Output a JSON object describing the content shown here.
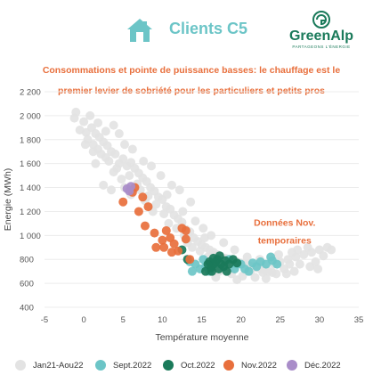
{
  "header": {
    "title": "Clients C5",
    "logo_text": "GreenAlp",
    "logo_tagline": "PARTAGEONS L'ÉNERGIE",
    "home_icon": "house-icon"
  },
  "colors": {
    "title": "#6cc5c7",
    "subtitle": "#e86f3c",
    "logo": "#1a7a5a",
    "jan21_aou22": "#e3e3e3",
    "sept2022": "#6cc5c7",
    "oct2022": "#1a7a5a",
    "nov2022": "#e86f3c",
    "dec2022": "#a98dc9"
  },
  "chart_data": {
    "type": "scatter",
    "title": "Consommations et pointe de puissance basses: le chauffage est le premier levier de sobriété pour les particuliers et petits pros",
    "xlabel": "Température moyenne",
    "ylabel": "Energie (MWh)",
    "xlim": [
      -5,
      35
    ],
    "ylim": [
      400,
      2200
    ],
    "x_ticks": [
      "-5",
      "0",
      "5",
      "10",
      "15",
      "20",
      "25",
      "30",
      "35"
    ],
    "y_ticks": [
      "400",
      "600",
      "800",
      "1 000",
      "1 200",
      "1 400",
      "1 600",
      "1 800",
      "2 000",
      "2 200"
    ],
    "grid": true,
    "annotation": {
      "lines": [
        "Données Nov.",
        "temporaires"
      ],
      "x": 25,
      "y": 1080
    },
    "legend_position": "bottom",
    "series": [
      {
        "name": "Jan21-Aou22",
        "color": "#e3e3e3",
        "points": [
          [
            -1,
            2030
          ],
          [
            0,
            1950
          ],
          [
            -0.5,
            1880
          ],
          [
            0.3,
            1860
          ],
          [
            1,
            1900
          ],
          [
            1.5,
            1850
          ],
          [
            0.5,
            1800
          ],
          [
            1.2,
            1760
          ],
          [
            2,
            1820
          ],
          [
            2.5,
            1780
          ],
          [
            3,
            1750
          ],
          [
            1.8,
            1720
          ],
          [
            2.2,
            1680
          ],
          [
            3.5,
            1700
          ],
          [
            4,
            1680
          ],
          [
            2.8,
            1650
          ],
          [
            1.5,
            1600
          ],
          [
            3.2,
            1620
          ],
          [
            4.5,
            1600
          ],
          [
            5,
            1640
          ],
          [
            5.5,
            1580
          ],
          [
            6,
            1610
          ],
          [
            4.2,
            1560
          ],
          [
            3.8,
            1530
          ],
          [
            6.5,
            1560
          ],
          [
            7,
            1520
          ],
          [
            5.8,
            1500
          ],
          [
            4.8,
            1470
          ],
          [
            7.5,
            1480
          ],
          [
            8,
            1450
          ],
          [
            6.8,
            1430
          ],
          [
            2.5,
            1420
          ],
          [
            3.5,
            1380
          ],
          [
            5.2,
            1400
          ],
          [
            7.2,
            1380
          ],
          [
            8.5,
            1400
          ],
          [
            9,
            1370
          ],
          [
            8.2,
            1330
          ],
          [
            9.5,
            1320
          ],
          [
            10,
            1300
          ],
          [
            6,
            1340
          ],
          [
            7.8,
            1290
          ],
          [
            9.2,
            1260
          ],
          [
            10.5,
            1240
          ],
          [
            11,
            1220
          ],
          [
            8.8,
            1200
          ],
          [
            10.2,
            1180
          ],
          [
            11.5,
            1170
          ],
          [
            12,
            1140
          ],
          [
            12.5,
            1110
          ],
          [
            10.8,
            1100
          ],
          [
            11.8,
            1060
          ],
          [
            13,
            1050
          ],
          [
            13.5,
            1030
          ],
          [
            12.8,
            1000
          ],
          [
            14,
            980
          ],
          [
            14.5,
            950
          ],
          [
            13.2,
            940
          ],
          [
            15,
            920
          ],
          [
            15.5,
            900
          ],
          [
            14.8,
            870
          ],
          [
            16,
            880
          ],
          [
            16.5,
            860
          ],
          [
            17,
            840
          ],
          [
            15.8,
            820
          ],
          [
            17.5,
            820
          ],
          [
            18,
            810
          ],
          [
            18.5,
            800
          ],
          [
            19,
            790
          ],
          [
            19.5,
            780
          ],
          [
            20,
            770
          ],
          [
            20.5,
            760
          ],
          [
            21,
            750
          ],
          [
            21.5,
            740
          ],
          [
            22,
            730
          ],
          [
            22.5,
            720
          ],
          [
            23,
            710
          ],
          [
            23.5,
            700
          ],
          [
            24,
            690
          ],
          [
            24.5,
            680
          ],
          [
            17.2,
            700
          ],
          [
            18.8,
            680
          ],
          [
            20.2,
            660
          ],
          [
            21.8,
            650
          ],
          [
            23.2,
            640
          ],
          [
            19.5,
            630
          ],
          [
            16.8,
            650
          ],
          [
            25,
            780
          ],
          [
            26,
            800
          ],
          [
            27,
            820
          ],
          [
            28,
            840
          ],
          [
            29,
            860
          ],
          [
            30,
            880
          ],
          [
            31,
            900
          ],
          [
            26.5,
            860
          ],
          [
            28.5,
            900
          ],
          [
            27.5,
            760
          ],
          [
            29.5,
            780
          ],
          [
            25.5,
            720
          ],
          [
            26.8,
            700
          ],
          [
            30.5,
            830
          ],
          [
            24.2,
            760
          ],
          [
            22.8,
            690
          ],
          [
            21.2,
            700
          ],
          [
            18.2,
            740
          ],
          [
            -1.2,
            1980
          ],
          [
            0.8,
            2000
          ],
          [
            1.8,
            1940
          ],
          [
            2.8,
            1870
          ],
          [
            4.5,
            1850
          ],
          [
            5.2,
            1760
          ],
          [
            6.2,
            1720
          ],
          [
            3.8,
            1920
          ],
          [
            1.2,
            1700
          ],
          [
            0.2,
            1760
          ],
          [
            8.6,
            1580
          ],
          [
            9.8,
            1500
          ],
          [
            7.6,
            1620
          ],
          [
            11.2,
            1420
          ],
          [
            12.2,
            1380
          ],
          [
            13.6,
            1280
          ],
          [
            10.6,
            1340
          ],
          [
            12.6,
            1200
          ],
          [
            14.2,
            1120
          ],
          [
            15.2,
            1060
          ],
          [
            16.2,
            1000
          ],
          [
            13.8,
            900
          ],
          [
            15.4,
            980
          ],
          [
            17.8,
            940
          ],
          [
            19.2,
            880
          ],
          [
            24.8,
            840
          ],
          [
            23.8,
            820
          ],
          [
            22.4,
            800
          ],
          [
            20.8,
            820
          ],
          [
            28.8,
            740
          ],
          [
            29.8,
            720
          ],
          [
            31.5,
            880
          ],
          [
            27.2,
            880
          ],
          [
            26.2,
            760
          ],
          [
            25.8,
            680
          ]
        ]
      },
      {
        "name": "Sept.2022",
        "color": "#6cc5c7",
        "points": [
          [
            13.5,
            780
          ],
          [
            14.2,
            760
          ],
          [
            14.8,
            720
          ],
          [
            13.8,
            700
          ],
          [
            15.5,
            740
          ],
          [
            19.5,
            760
          ],
          [
            20.5,
            720
          ],
          [
            21.5,
            770
          ],
          [
            22.5,
            780
          ],
          [
            23.2,
            760
          ],
          [
            22,
            740
          ],
          [
            21,
            700
          ],
          [
            20,
            760
          ],
          [
            18.5,
            800
          ],
          [
            24,
            790
          ],
          [
            23.8,
            820
          ],
          [
            19.2,
            720
          ],
          [
            15.2,
            800
          ],
          [
            16,
            700
          ],
          [
            24.6,
            760
          ]
        ]
      },
      {
        "name": "Oct.2022",
        "color": "#1a7a5a",
        "points": [
          [
            12.5,
            880
          ],
          [
            13.2,
            800
          ],
          [
            15.5,
            700
          ],
          [
            16,
            780
          ],
          [
            16.5,
            760
          ],
          [
            16.2,
            730
          ],
          [
            17,
            800
          ],
          [
            17.5,
            760
          ],
          [
            17.2,
            720
          ],
          [
            18,
            790
          ],
          [
            18.5,
            760
          ],
          [
            19,
            800
          ],
          [
            17.8,
            740
          ],
          [
            16.8,
            780
          ],
          [
            15.8,
            760
          ],
          [
            16.5,
            810
          ],
          [
            17.3,
            830
          ],
          [
            18.2,
            700
          ],
          [
            19.5,
            770
          ],
          [
            16.3,
            700
          ]
        ]
      },
      {
        "name": "Nov.2022",
        "color": "#e86f3c",
        "points": [
          [
            5,
            1280
          ],
          [
            6.2,
            1360
          ],
          [
            7.5,
            1320
          ],
          [
            7,
            1200
          ],
          [
            8.2,
            1240
          ],
          [
            7.8,
            1080
          ],
          [
            9,
            1020
          ],
          [
            10,
            960
          ],
          [
            9.2,
            900
          ],
          [
            10.5,
            1040
          ],
          [
            11,
            980
          ],
          [
            11.5,
            930
          ],
          [
            12.5,
            1060
          ],
          [
            13,
            1040
          ],
          [
            12,
            870
          ],
          [
            13.5,
            800
          ],
          [
            11.2,
            860
          ],
          [
            10.2,
            900
          ],
          [
            13,
            970
          ],
          [
            6.5,
            1400
          ]
        ]
      },
      {
        "name": "Déc.2022",
        "color": "#a98dc9",
        "points": [
          [
            5.5,
            1390
          ],
          [
            6,
            1410
          ],
          [
            5.8,
            1370
          ]
        ]
      }
    ]
  },
  "legend": [
    {
      "label": "Jan21-Aou22",
      "color": "#e3e3e3"
    },
    {
      "label": "Sept.2022",
      "color": "#6cc5c7"
    },
    {
      "label": "Oct.2022",
      "color": "#1a7a5a"
    },
    {
      "label": "Nov.2022",
      "color": "#e86f3c"
    },
    {
      "label": "Déc.2022",
      "color": "#a98dc9"
    }
  ]
}
